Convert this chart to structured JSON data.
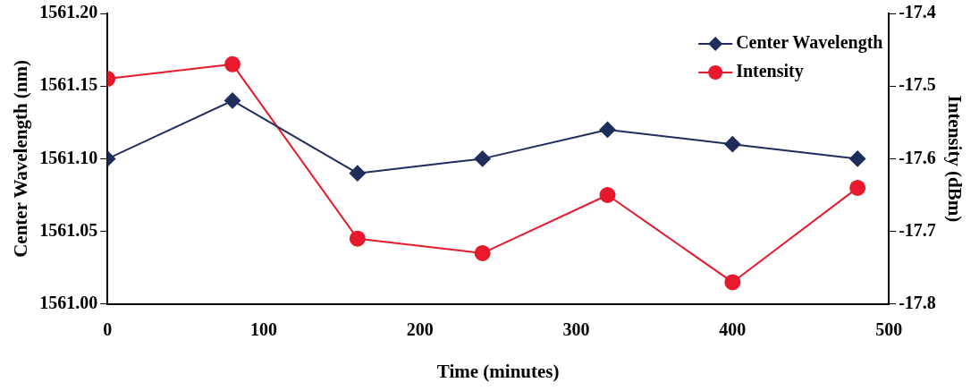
{
  "chart_data": {
    "type": "line",
    "xlabel": "Time (minutes)",
    "ylabel": "Center Wavelength (nm)",
    "y2label": "Intensity (dBm)",
    "x": [
      0,
      80,
      160,
      240,
      320,
      400,
      480
    ],
    "series": [
      {
        "name": "Center Wavelength",
        "color": "#1f2d5c",
        "marker": "diamond",
        "values": [
          1561.1,
          1561.14,
          1561.09,
          1561.1,
          1561.12,
          1561.11,
          1561.1
        ]
      },
      {
        "name": "Intensity",
        "color": "#e8192c",
        "marker": "circle",
        "axis": "y2",
        "values": [
          -17.49,
          -17.47,
          -17.71,
          -17.73,
          -17.65,
          -17.77,
          -17.64
        ]
      }
    ],
    "xlim": [
      0,
      500
    ],
    "xticks": [
      0,
      100,
      200,
      300,
      400,
      500
    ],
    "ylim": [
      1561.0,
      1561.2
    ],
    "yticks": [
      {
        "value": 1561.0,
        "label": "1561.00"
      },
      {
        "value": 1561.05,
        "label": "1561.05"
      },
      {
        "value": 1561.1,
        "label": "1561.10"
      },
      {
        "value": 1561.15,
        "label": "1561.15"
      },
      {
        "value": 1561.2,
        "label": "1561.20"
      }
    ],
    "y2lim": [
      -17.8,
      -17.4
    ],
    "y2ticks": [
      -17.8,
      -17.7,
      -17.6,
      -17.5,
      -17.4
    ],
    "grid": false,
    "legend": "top right",
    "line_style": "solid"
  }
}
